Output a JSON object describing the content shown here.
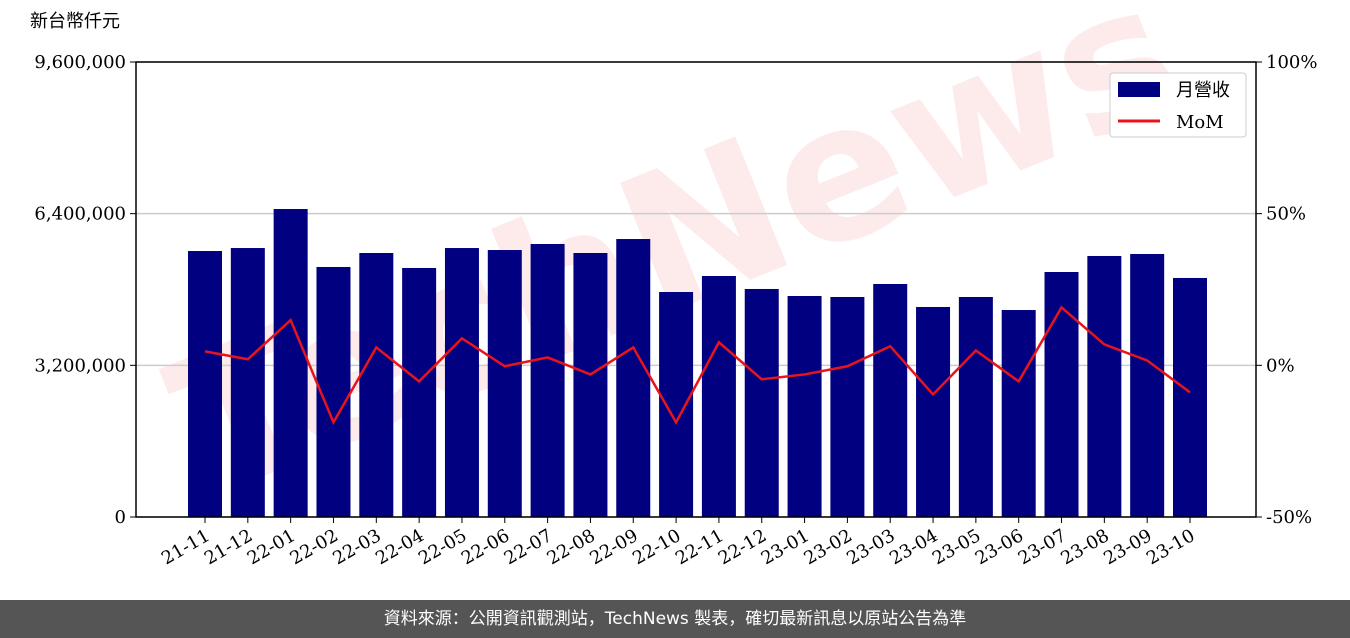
{
  "chart_data": {
    "type": "bar",
    "y_label": "新台幣仟元",
    "watermark": "TechNews",
    "categories": [
      "21-11",
      "21-12",
      "22-01",
      "22-02",
      "22-03",
      "22-04",
      "22-05",
      "22-06",
      "22-07",
      "22-08",
      "22-09",
      "22-10",
      "22-11",
      "22-12",
      "23-01",
      "23-02",
      "23-03",
      "23-04",
      "23-05",
      "23-06",
      "23-07",
      "23-08",
      "23-09",
      "23-10"
    ],
    "series": [
      {
        "name": "月營收",
        "color": "#000080",
        "type": "bar",
        "values": [
          5612000,
          5675000,
          6498000,
          5275000,
          5570000,
          5254000,
          5675000,
          5633000,
          5760000,
          5570000,
          5865000,
          4747000,
          5085000,
          4811000,
          4663000,
          4642000,
          4916000,
          4431000,
          4642000,
          4367000,
          5169000,
          5507000,
          5549000,
          5043000
        ]
      },
      {
        "name": "MoM",
        "color": "#e8141c",
        "type": "line",
        "axis": "y2",
        "values": [
          4.6,
          2.0,
          14.9,
          -18.8,
          5.9,
          -5.3,
          8.9,
          -0.3,
          2.6,
          -3.0,
          5.9,
          -18.8,
          7.6,
          -4.6,
          -3.0,
          -0.3,
          6.3,
          -9.6,
          4.9,
          -5.3,
          19.1,
          6.9,
          1.6,
          -8.9
        ]
      }
    ],
    "ylim": [
      0,
      9600000
    ],
    "yticks": [
      0,
      {
        "value": 3200000,
        "label": "3,200,000"
      },
      {
        "value": 6400000,
        "label": "6,400,000"
      },
      {
        "value": 9600000,
        "label": "9,600,000"
      }
    ],
    "y2lim": [
      -50,
      100
    ],
    "y2ticks": [
      {
        "value": -50,
        "label": "-50%"
      },
      {
        "value": 0,
        "label": "0%"
      },
      {
        "value": 50,
        "label": "50%"
      },
      {
        "value": 100,
        "label": "100%"
      }
    ],
    "grid": true,
    "legend": "upper right",
    "footer": "資料來源：公開資訊觀測站，TechNews 製表，確切最新訊息以原站公告為準"
  }
}
